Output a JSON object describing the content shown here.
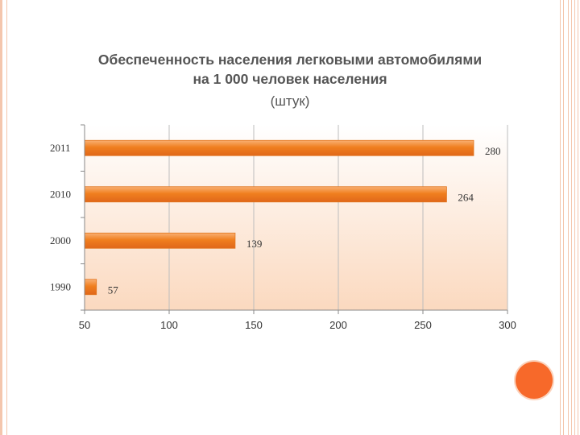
{
  "chart_data": {
    "type": "bar",
    "orientation": "horizontal",
    "title": "Обеспеченность населения легковыми автомобилями на 1 000 человек населения",
    "subtitle": "(штук)",
    "categories": [
      "2011",
      "2010",
      "2000",
      "1990"
    ],
    "values": [
      280,
      264,
      139,
      57
    ],
    "data_labels": [
      "280",
      "264",
      "139",
      "57"
    ],
    "xlim": [
      50,
      300
    ],
    "x_ticks": [
      "50",
      "100",
      "150",
      "200",
      "250",
      "300"
    ],
    "grid": true,
    "bar_color": "#f08a2c",
    "background_gradient": [
      "#ffffff",
      "#fbd9bf"
    ]
  },
  "header": {
    "title_line1": "Обеспеченность населения легковыми автомобилями",
    "title_line2": "на 1 000 человек населения",
    "subtitle": "(штук)"
  },
  "decor": {
    "accent_color": "#f7692a",
    "border_color": "#f4c6ad"
  }
}
